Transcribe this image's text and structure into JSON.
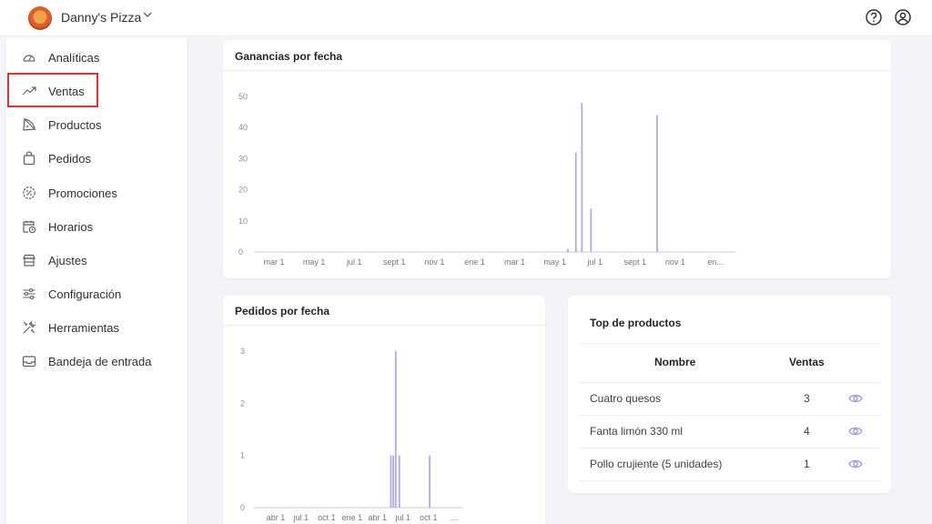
{
  "header": {
    "brand": "Danny's Pizza"
  },
  "sidebar": {
    "items": [
      {
        "label": "Analíticas",
        "icon": "speedometer-icon"
      },
      {
        "label": "Ventas",
        "icon": "trending-up-icon"
      },
      {
        "label": "Productos",
        "icon": "pizza-slice-icon"
      },
      {
        "label": "Pedidos",
        "icon": "shopping-bag-icon"
      },
      {
        "label": "Promociones",
        "icon": "percent-badge-icon"
      },
      {
        "label": "Horarios",
        "icon": "calendar-clock-icon"
      },
      {
        "label": "Ajustes",
        "icon": "store-icon"
      },
      {
        "label": "Configuración",
        "icon": "sliders-icon"
      },
      {
        "label": "Herramientas",
        "icon": "tools-icon"
      },
      {
        "label": "Bandeja de entrada",
        "icon": "inbox-icon"
      }
    ]
  },
  "revenue_card": {
    "title": "Ganancias por fecha"
  },
  "orders_card": {
    "title": "Pedidos por fecha"
  },
  "top_products": {
    "title": "Top de productos",
    "col_name": "Nombre",
    "col_sales": "Ventas",
    "rows": [
      {
        "name": "Cuatro quesos",
        "sales": "3"
      },
      {
        "name": "Fanta limón 330 ml",
        "sales": "4"
      },
      {
        "name": "Pollo crujiente (5 unidades)",
        "sales": "1"
      }
    ]
  },
  "colors": {
    "accent": "#b5a6e6",
    "highlight_box": "#e03131"
  },
  "chart_data": [
    {
      "type": "bar",
      "title": "Ganancias por fecha",
      "xlabel": "",
      "ylabel": "",
      "ylim": [
        0,
        50
      ],
      "yticks": [
        "0",
        "10",
        "20",
        "30",
        "40",
        "50"
      ],
      "xtick_labels": [
        "mar 1",
        "may 1",
        "jul 1",
        "sept 1",
        "nov 1",
        "ene 1",
        "mar 1",
        "may 1",
        "jul 1",
        "sept 1",
        "nov 1",
        "en..."
      ],
      "xtick_pos": [
        0.5,
        2.5,
        4.5,
        6.5,
        8.5,
        10.5,
        12.5,
        14.5,
        16.5,
        18.5,
        20.5,
        22.5
      ],
      "xlim": [
        -0.5,
        23.5
      ],
      "x": [
        15.15,
        15.55,
        15.85,
        16.3,
        19.6
      ],
      "values": [
        1,
        32,
        48,
        14,
        44
      ]
    },
    {
      "type": "bar",
      "title": "Pedidos por fecha",
      "xlabel": "",
      "ylabel": "",
      "ylim": [
        0,
        3
      ],
      "yticks": [
        "0",
        "1",
        "2",
        "3"
      ],
      "xtick_labels": [
        "abr 1",
        "jul 1",
        "oct 1",
        "ene 1",
        "abr 1",
        "jul 1",
        "oct 1",
        "..."
      ],
      "xtick_pos": [
        0.4,
        1.45,
        2.5,
        3.55,
        4.6,
        5.65,
        6.7,
        7.75
      ],
      "xlim": [
        -0.5,
        8.1
      ],
      "x": [
        5.15,
        5.25,
        5.35,
        5.5,
        6.75
      ],
      "values": [
        1,
        1,
        3,
        1,
        1
      ]
    }
  ]
}
